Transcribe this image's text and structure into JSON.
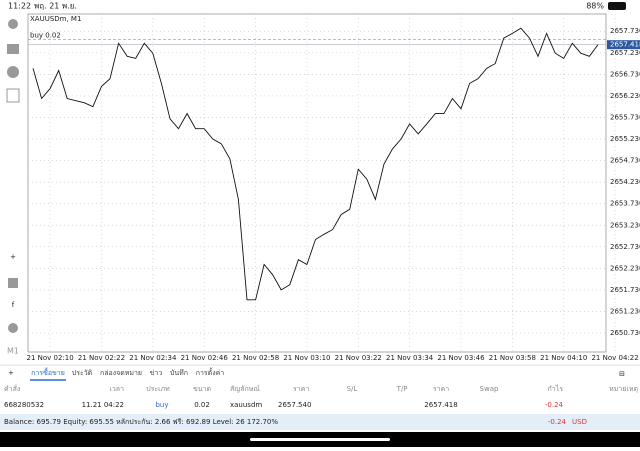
{
  "status": {
    "time": "11:22",
    "date": "พฤ. 21 พ.ย.",
    "battery": "88%"
  },
  "chart_data": {
    "type": "line",
    "title": "XAUUSDm, M1",
    "toolbar_label": "M1",
    "categories": [
      null,
      null,
      "21 Nov 02:10",
      null,
      null,
      null,
      null,
      null,
      "21 Nov 02:22",
      null,
      null,
      null,
      null,
      null,
      "21 Nov 02:34",
      null,
      null,
      null,
      null,
      null,
      "21 Nov 02:46",
      null,
      null,
      null,
      null,
      null,
      "21 Nov 02:58",
      null,
      null,
      null,
      null,
      null,
      "21 Nov 03:10",
      null,
      null,
      null,
      null,
      null,
      "21 Nov 03:22",
      null,
      null,
      null,
      null,
      null,
      "21 Nov 03:34",
      null,
      null,
      null,
      null,
      null,
      "21 Nov 03:46",
      null,
      null,
      null,
      null,
      null,
      "21 Nov 03:58",
      null,
      null,
      null,
      null,
      null,
      "21 Nov 04:10",
      null,
      null,
      null,
      null,
      null,
      "21 Nov 04:22"
    ],
    "series": [
      {
        "name": "XAUUSDm",
        "color": "#111111",
        "values": [
          2656.87,
          2656.17,
          2656.4,
          2656.82,
          2656.17,
          2656.12,
          2656.07,
          2655.98,
          2656.45,
          2656.63,
          2657.45,
          2657.15,
          2657.1,
          2657.45,
          2657.22,
          2656.52,
          2655.7,
          2655.47,
          2655.82,
          2655.47,
          2655.47,
          2655.23,
          2655.12,
          2654.77,
          2653.83,
          2651.5,
          2651.5,
          2652.32,
          2652.08,
          2651.73,
          2651.85,
          2652.43,
          2652.32,
          2652.9,
          2653.02,
          2653.13,
          2653.48,
          2653.6,
          2654.53,
          2654.3,
          2653.83,
          2654.65,
          2655.0,
          2655.23,
          2655.58,
          2655.35,
          2655.58,
          2655.82,
          2655.82,
          2656.17,
          2655.93,
          2656.52,
          2656.63,
          2656.87,
          2656.98,
          2657.57,
          2657.68,
          2657.8,
          2657.57,
          2657.15,
          2657.68,
          2657.22,
          2657.1,
          2657.45,
          2657.22,
          2657.15,
          2657.42,
          null,
          null
        ]
      }
    ],
    "current_price": {
      "value": 2657.418,
      "label": "2657.418"
    },
    "order_line": {
      "value": 2657.54,
      "label": "buy 0.02"
    },
    "ylim": [
      2650.29,
      2658.13
    ],
    "yticks": [
      {
        "value": 2650.73,
        "label": "2650.730"
      },
      {
        "value": 2651.23,
        "label": "2651.230"
      },
      {
        "value": 2651.73,
        "label": "2651.730"
      },
      {
        "value": 2652.23,
        "label": "2652.230"
      },
      {
        "value": 2652.73,
        "label": "2652.730"
      },
      {
        "value": 2653.23,
        "label": "2653.230"
      },
      {
        "value": 2653.73,
        "label": "2653.730"
      },
      {
        "value": 2654.23,
        "label": "2654.230"
      },
      {
        "value": 2654.73,
        "label": "2654.730"
      },
      {
        "value": 2655.23,
        "label": "2655.230"
      },
      {
        "value": 2655.73,
        "label": "2655.730"
      },
      {
        "value": 2656.23,
        "label": "2656.230"
      },
      {
        "value": 2656.73,
        "label": "2656.730"
      },
      {
        "value": 2657.23,
        "label": "2657.230"
      },
      {
        "value": 2657.73,
        "label": "2657.730"
      }
    ],
    "grid": true
  },
  "tabs": [
    "การซื้อขาย",
    "ประวัติ",
    "กล่องจดหมาย",
    "ข่าว",
    "บันทึก",
    "การตั้งค่า"
  ],
  "table": {
    "headers": [
      "คำสั่ง",
      "เวลา",
      "ประเภท",
      "ขนาด",
      "สัญลักษณ์",
      "ราคา",
      "S/L",
      "T/P",
      "ราคา",
      "Swap",
      "กำไร",
      "หมายเหตุ"
    ],
    "row": {
      "order": "668280532",
      "time": "11.21 04:22",
      "type": "buy",
      "size": "0.02",
      "symbol": "xauusdm",
      "open_price": "2657.540",
      "price": "2657.418",
      "profit": "-0.24"
    }
  },
  "footer": {
    "summary": "Balance: 695.79 Equity: 695.55 หลักประกัน: 2.66 ฟรี: 692.89 Level: 26 172.70%",
    "profit": "-0.24",
    "currency": "USD"
  }
}
